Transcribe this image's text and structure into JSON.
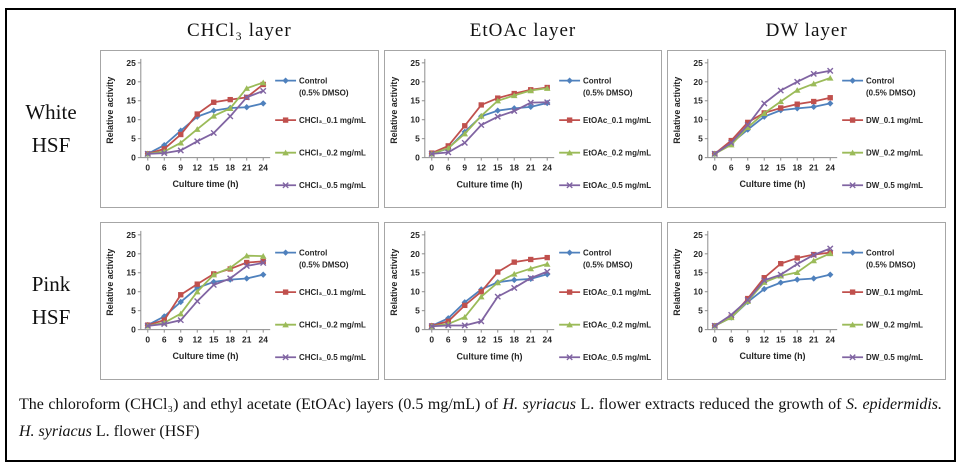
{
  "figure": {
    "columns": [
      "CHCl₃ layer",
      "EtOAc layer",
      "DW layer"
    ],
    "rows": [
      [
        "White",
        "HSF"
      ],
      [
        "Pink",
        "HSF"
      ]
    ]
  },
  "caption": {
    "segments": [
      {
        "text": "The chloroform (CHCl₃) and ethyl acetate (EtOAc) layers (0.5 mg/mL) of ",
        "italic": false
      },
      {
        "text": "H. syriacus",
        "italic": true
      },
      {
        "text": " L. flower extracts reduced the growth of ",
        "italic": false
      },
      {
        "text": "S. epidermidis.",
        "italic": true
      },
      {
        "text": " ",
        "italic": false
      },
      {
        "text": "H. syriacus",
        "italic": true
      },
      {
        "text": " L. flower (HSF)",
        "italic": false
      }
    ]
  },
  "chart_data": [
    {
      "type": "line",
      "row": "White HSF",
      "column": "CHCl₃ layer",
      "x": [
        0,
        6,
        9,
        12,
        15,
        18,
        21,
        24
      ],
      "xlabel": "Culture time (h)",
      "ylabel": "Relative activity",
      "ylim": [
        0,
        25
      ],
      "yticks": [
        0,
        5,
        10,
        15,
        20,
        25
      ],
      "grid": false,
      "legend_position": "right",
      "series": [
        {
          "name": "Control (0.5% DMSO)",
          "legend_lines": [
            "Control",
            "(0.5% DMSO)"
          ],
          "color": "#4F81BD",
          "marker": "diamond",
          "values": [
            1,
            3.3,
            7.1,
            10.8,
            12.4,
            13.1,
            13.3,
            14.3
          ]
        },
        {
          "name": "CHCl₃_0.1 mg/mL",
          "legend_lines": [
            "CHCl₃_0.1 mg/mL"
          ],
          "color": "#C0504D",
          "marker": "square",
          "values": [
            1,
            2.3,
            6.1,
            11.5,
            14.6,
            15.3,
            15.9,
            19.3
          ]
        },
        {
          "name": "CHCl₃_0.2 mg/mL",
          "legend_lines": [
            "CHCl₃_0.2 mg/mL"
          ],
          "color": "#9BBB59",
          "marker": "triangle",
          "values": [
            1,
            1.6,
            3.9,
            7.5,
            11,
            13,
            18.3,
            19.8
          ]
        },
        {
          "name": "CHCl₃_0.5 mg/mL",
          "legend_lines": [
            "CHCl₃_0.5 mg/mL"
          ],
          "color": "#8064A2",
          "marker": "x",
          "values": [
            1,
            1.2,
            1.9,
            4.3,
            6.5,
            10.9,
            15.9,
            17.6
          ]
        }
      ]
    },
    {
      "type": "line",
      "row": "White HSF",
      "column": "EtOAc layer",
      "x": [
        0,
        6,
        9,
        12,
        15,
        18,
        21,
        24
      ],
      "xlabel": "Culture time (h)",
      "ylabel": "Relative activity",
      "ylim": [
        0,
        25
      ],
      "yticks": [
        0,
        5,
        10,
        15,
        20,
        25
      ],
      "grid": false,
      "legend_position": "right",
      "series": [
        {
          "name": "Control (0.5% DMSO)",
          "legend_lines": [
            "Control",
            "(0.5% DMSO)"
          ],
          "color": "#4F81BD",
          "marker": "diamond",
          "values": [
            1,
            2.4,
            6.8,
            10.9,
            12.4,
            13,
            13.4,
            14.4
          ]
        },
        {
          "name": "EtOAc_0.1 mg/mL",
          "legend_lines": [
            "EtOAc_0.1 mg/mL"
          ],
          "color": "#C0504D",
          "marker": "square",
          "values": [
            1.2,
            3.1,
            8.4,
            13.9,
            15.7,
            16.9,
            17.9,
            18.5
          ]
        },
        {
          "name": "EtOAc_0.2 mg/mL",
          "legend_lines": [
            "EtOAc_0.2 mg/mL"
          ],
          "color": "#9BBB59",
          "marker": "triangle",
          "values": [
            1,
            2.5,
            6.3,
            11,
            15,
            16.4,
            17.7,
            18.3
          ]
        },
        {
          "name": "EtOAc_0.5 mg/mL",
          "legend_lines": [
            "EtOAc_0.5 mg/mL"
          ],
          "color": "#8064A2",
          "marker": "x",
          "values": [
            1,
            1.4,
            3.9,
            8.6,
            10.8,
            12.3,
            14.5,
            14.6
          ]
        }
      ]
    },
    {
      "type": "line",
      "row": "White HSF",
      "column": "DW layer",
      "x": [
        0,
        6,
        9,
        12,
        15,
        18,
        21,
        24
      ],
      "xlabel": "Culture time (h)",
      "ylabel": "Relative activity",
      "ylim": [
        0,
        25
      ],
      "yticks": [
        0,
        5,
        10,
        15,
        20,
        25
      ],
      "grid": false,
      "legend_position": "right",
      "series": [
        {
          "name": "Control (0.5% DMSO)",
          "legend_lines": [
            "Control",
            "(0.5% DMSO)"
          ],
          "color": "#4F81BD",
          "marker": "diamond",
          "values": [
            1,
            3.8,
            7.4,
            10.8,
            12.5,
            13,
            13.4,
            14.3
          ]
        },
        {
          "name": "DW_0.1 mg/mL",
          "legend_lines": [
            "DW_0.1 mg/mL"
          ],
          "color": "#C0504D",
          "marker": "square",
          "values": [
            1,
            4.5,
            9.3,
            11.8,
            13.1,
            14.1,
            14.8,
            15.8
          ]
        },
        {
          "name": "DW_0.2 mg/mL",
          "legend_lines": [
            "DW_0.2 mg/mL"
          ],
          "color": "#9BBB59",
          "marker": "triangle",
          "values": [
            1,
            3.4,
            8,
            11.7,
            14.8,
            17.8,
            19.5,
            21
          ]
        },
        {
          "name": "DW_0.5 mg/mL",
          "legend_lines": [
            "DW_0.5 mg/mL"
          ],
          "color": "#8064A2",
          "marker": "x",
          "values": [
            1,
            3.9,
            8.6,
            14.3,
            17.7,
            20,
            22.1,
            22.9
          ]
        }
      ]
    },
    {
      "type": "line",
      "row": "Pink HSF",
      "column": "CHCl₃ layer",
      "x": [
        0,
        6,
        9,
        12,
        15,
        18,
        21,
        24
      ],
      "xlabel": "Culture time (h)",
      "ylabel": "Relative activity",
      "ylim": [
        0,
        25
      ],
      "yticks": [
        0,
        5,
        10,
        15,
        20,
        25
      ],
      "grid": false,
      "legend_position": "right",
      "series": [
        {
          "name": "Control (0.5% DMSO)",
          "legend_lines": [
            "Control",
            "(0.5% DMSO)"
          ],
          "color": "#4F81BD",
          "marker": "diamond",
          "values": [
            1.2,
            3.5,
            7.3,
            11,
            12.6,
            13.2,
            13.5,
            14.5
          ]
        },
        {
          "name": "CHCl₃_0.1 mg/mL",
          "legend_lines": [
            "CHCl₃_0.1 mg/mL"
          ],
          "color": "#C0504D",
          "marker": "square",
          "values": [
            1.2,
            2.5,
            9.2,
            12,
            14.7,
            16,
            17.7,
            18
          ]
        },
        {
          "name": "CHCl₃_0.2 mg/mL",
          "legend_lines": [
            "CHCl₃_0.2 mg/mL"
          ],
          "color": "#9BBB59",
          "marker": "triangle",
          "values": [
            1,
            1.8,
            4.2,
            10,
            14.5,
            16.3,
            19.5,
            19.4
          ]
        },
        {
          "name": "CHCl₃_0.5 mg/mL",
          "legend_lines": [
            "CHCl₃_0.5 mg/mL"
          ],
          "color": "#8064A2",
          "marker": "x",
          "values": [
            1,
            1.5,
            2.5,
            7.5,
            11.8,
            13.5,
            16.8,
            17.6
          ]
        }
      ]
    },
    {
      "type": "line",
      "row": "Pink HSF",
      "column": "EtOAc layer",
      "x": [
        0,
        6,
        9,
        12,
        15,
        18,
        21,
        24
      ],
      "xlabel": "Culture time (h)",
      "ylabel": "Relative activity",
      "ylim": [
        0,
        25
      ],
      "yticks": [
        0,
        5,
        10,
        15,
        20,
        25
      ],
      "grid": false,
      "legend_position": "right",
      "series": [
        {
          "name": "Control (0.5% DMSO)",
          "legend_lines": [
            "Control",
            "(0.5% DMSO)"
          ],
          "color": "#4F81BD",
          "marker": "diamond",
          "values": [
            1,
            3,
            7.2,
            10.6,
            12.5,
            13.1,
            13.4,
            14.6
          ]
        },
        {
          "name": "EtOAc_0.1 mg/mL",
          "legend_lines": [
            "EtOAc_0.1 mg/mL"
          ],
          "color": "#C0504D",
          "marker": "square",
          "values": [
            1,
            2.2,
            6.4,
            10,
            15.2,
            17.8,
            18.5,
            19
          ]
        },
        {
          "name": "EtOAc_0.2 mg/mL",
          "legend_lines": [
            "EtOAc_0.2 mg/mL"
          ],
          "color": "#9BBB59",
          "marker": "triangle",
          "values": [
            0.9,
            1.5,
            3.3,
            8.7,
            12.4,
            14.7,
            16.1,
            17.3
          ]
        },
        {
          "name": "EtOAc_0.5 mg/mL",
          "legend_lines": [
            "EtOAc_0.5 mg/mL"
          ],
          "color": "#8064A2",
          "marker": "x",
          "values": [
            0.9,
            1.1,
            1.1,
            2.2,
            8.7,
            11,
            13.6,
            15.3
          ]
        }
      ]
    },
    {
      "type": "line",
      "row": "Pink HSF",
      "column": "DW layer",
      "x": [
        0,
        6,
        9,
        12,
        15,
        18,
        21,
        24
      ],
      "xlabel": "Culture time (h)",
      "ylabel": "Relative activity",
      "ylim": [
        0,
        25
      ],
      "yticks": [
        0,
        5,
        10,
        15,
        20,
        25
      ],
      "grid": false,
      "legend_position": "right",
      "series": [
        {
          "name": "Control (0.5% DMSO)",
          "legend_lines": [
            "Control",
            "(0.5% DMSO)"
          ],
          "color": "#4F81BD",
          "marker": "diamond",
          "values": [
            1,
            3.2,
            7.3,
            10.7,
            12.4,
            13.2,
            13.5,
            14.5
          ]
        },
        {
          "name": "DW_0.1 mg/mL",
          "legend_lines": [
            "DW_0.1 mg/mL"
          ],
          "color": "#C0504D",
          "marker": "square",
          "values": [
            1,
            3.3,
            8.2,
            13.7,
            17.4,
            18.9,
            19.8,
            20.3
          ]
        },
        {
          "name": "DW_0.2 mg/mL",
          "legend_lines": [
            "DW_0.2 mg/mL"
          ],
          "color": "#9BBB59",
          "marker": "triangle",
          "values": [
            1,
            3.2,
            7.5,
            12.5,
            14.2,
            15.1,
            18.2,
            20.1
          ]
        },
        {
          "name": "DW_0.5 mg/mL",
          "legend_lines": [
            "DW_0.5 mg/mL"
          ],
          "color": "#8064A2",
          "marker": "x",
          "values": [
            1,
            3.9,
            7.8,
            13,
            14.5,
            17.3,
            19.7,
            21.4
          ]
        }
      ]
    }
  ]
}
